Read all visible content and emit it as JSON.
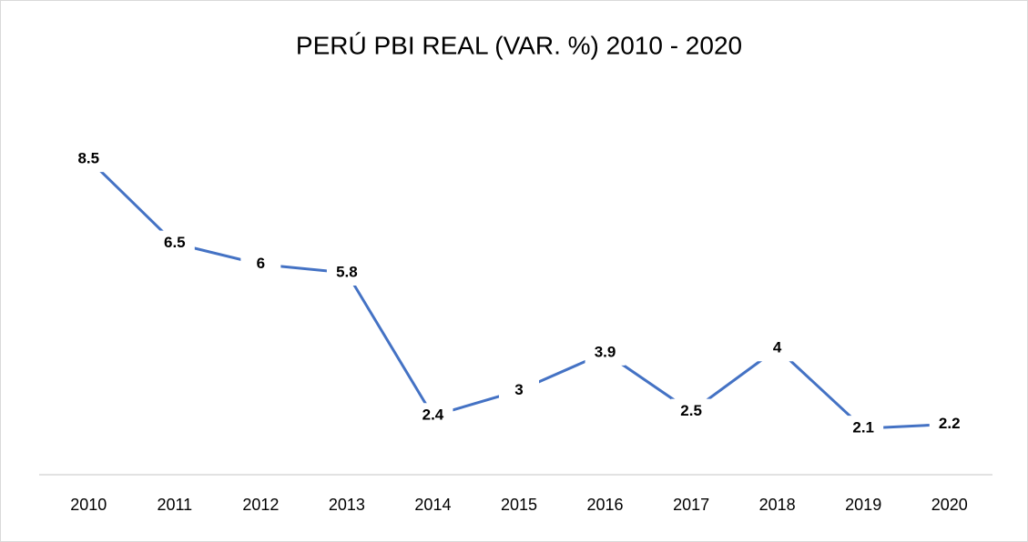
{
  "chart_data": {
    "type": "line",
    "title": "PERÚ PBI REAL (VAR. %) 2010 - 2020",
    "categories": [
      "2010",
      "2011",
      "2012",
      "2013",
      "2014",
      "2015",
      "2016",
      "2017",
      "2018",
      "2019",
      "2020"
    ],
    "series": [
      {
        "name": "PBI Real",
        "color": "#4472c4",
        "values": [
          8.5,
          6.5,
          6,
          5.8,
          2.4,
          3,
          3.9,
          2.5,
          4,
          2.1,
          2.2
        ]
      }
    ],
    "ylim": [
      1,
      9
    ]
  }
}
